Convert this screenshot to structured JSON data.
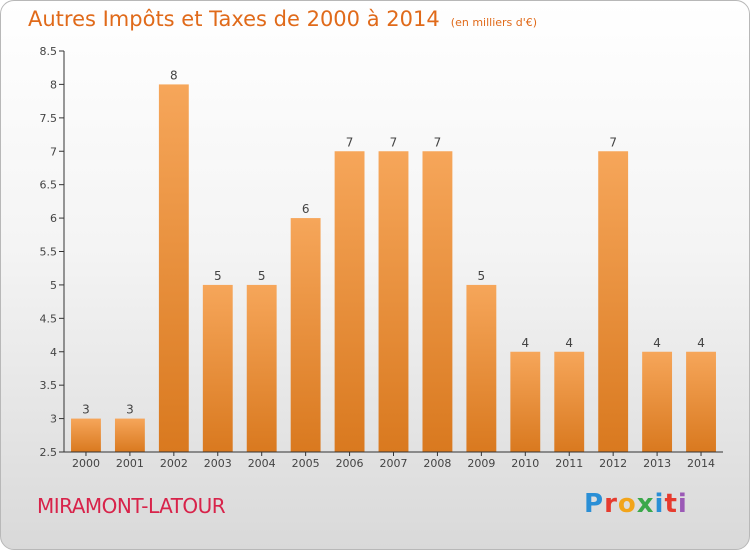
{
  "header": {
    "title": "Autres Impôts et Taxes de 2000 à 2014",
    "unit": "(en milliers d'€)"
  },
  "footer": {
    "commune": "MIRAMONT-LATOUR",
    "logo_letters": [
      {
        "ch": "P",
        "color": "#2a8fd6"
      },
      {
        "ch": "r",
        "color": "#e63b2e"
      },
      {
        "ch": "o",
        "color": "#f2a41a"
      },
      {
        "ch": "x",
        "color": "#3aa84a"
      },
      {
        "ch": "i",
        "color": "#2a8fd6"
      },
      {
        "ch": "t",
        "color": "#e63b2e"
      },
      {
        "ch": "i",
        "color": "#9b59b6"
      }
    ]
  },
  "colors": {
    "bar_light": "#f6a65a",
    "bar_dark": "#d9791f",
    "axis": "#333333",
    "grid": "#d0d0d0",
    "label": "#444444"
  },
  "chart_data": {
    "type": "bar",
    "categories": [
      "2000",
      "2001",
      "2002",
      "2003",
      "2004",
      "2005",
      "2006",
      "2007",
      "2008",
      "2009",
      "2010",
      "2011",
      "2012",
      "2013",
      "2014"
    ],
    "values": [
      3,
      3,
      8,
      5,
      5,
      6,
      7,
      7,
      7,
      5,
      4,
      4,
      7,
      4,
      4
    ],
    "data_labels": [
      "3",
      "3",
      "8",
      "5",
      "5",
      "6",
      "7",
      "7",
      "7",
      "5",
      "4",
      "4",
      "7",
      "4",
      "4"
    ],
    "ylim": [
      2.5,
      8.5
    ],
    "yticks": [
      2.5,
      3,
      3.5,
      4,
      4.5,
      5,
      5.5,
      6,
      6.5,
      7,
      7.5,
      8,
      8.5
    ],
    "ytick_labels": [
      "2.5",
      "3",
      "3.5",
      "4",
      "4.5",
      "5",
      "5.5",
      "6",
      "6.5",
      "7",
      "7.5",
      "8",
      "8.5"
    ],
    "grid": false,
    "legend": false
  }
}
